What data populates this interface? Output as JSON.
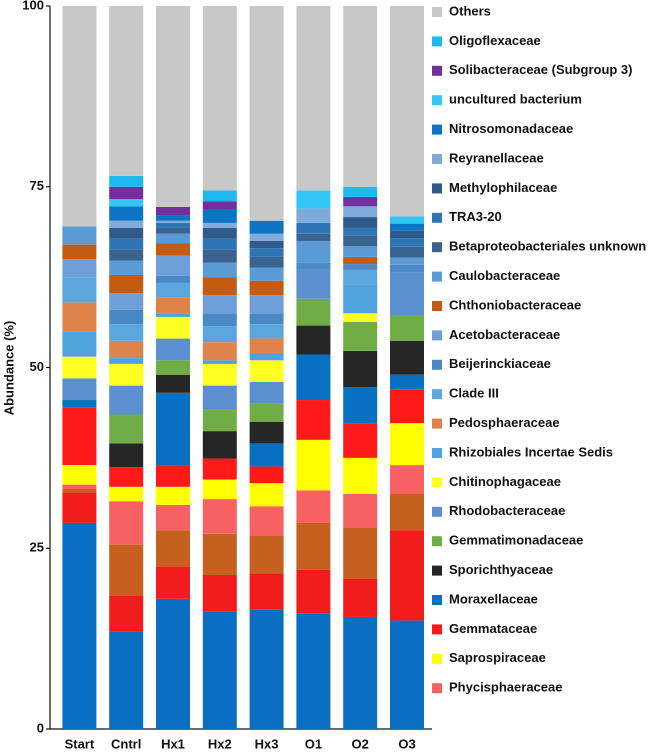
{
  "chart_data": {
    "type": "stacked_bar",
    "y_label": "Abundance (%)",
    "categories": [
      "Start",
      "Cntrl",
      "Hx1",
      "Hx2",
      "Hx3",
      "O1",
      "O2",
      "O3"
    ],
    "ylim": [
      0,
      100
    ],
    "yticks": [
      0,
      25,
      50,
      75,
      100
    ],
    "grid": false,
    "legend": "right",
    "series": [
      {
        "color": "#0a6fc2",
        "values": [
          28.5,
          13.5,
          18,
          16.3,
          16.5,
          16,
          15.5,
          15
        ]
      },
      {
        "color": "#f21c1c",
        "values": [
          4.2,
          5,
          4.5,
          5,
          5,
          6,
          5.3,
          12.5
        ]
      },
      {
        "color": "#c5601e",
        "values": [
          0.5,
          7,
          5,
          5.7,
          5.3,
          6.5,
          7,
          5
        ]
      },
      {
        "name": "Phycisphaeraceae",
        "color": "#f86161",
        "values": [
          0.6,
          6,
          3.5,
          4.8,
          4,
          4.5,
          4.7,
          4
        ]
      },
      {
        "name": "Saprospiraceae",
        "color": "#ffff00",
        "values": [
          2.7,
          2,
          2.5,
          2.7,
          3.2,
          7,
          5,
          5.8
        ]
      },
      {
        "name": "Gemmataceae",
        "color": "#ff1a1a",
        "values": [
          8,
          2.7,
          3,
          2.9,
          2.3,
          5.5,
          4.8,
          4.7
        ]
      },
      {
        "name": "Moraxellaceae",
        "color": "#0870c0",
        "values": [
          1,
          0,
          10,
          0,
          3.2,
          6.3,
          5,
          2
        ]
      },
      {
        "name": "Sporichthyaceae",
        "color": "#262626",
        "values": [
          0,
          3.3,
          2.5,
          3.8,
          3,
          4,
          5,
          4.7
        ]
      },
      {
        "name": "Gemmatimonadaceae",
        "color": "#70ad47",
        "values": [
          0,
          4,
          2,
          3,
          2.5,
          3.7,
          4,
          3.5
        ]
      },
      {
        "name": "Rhodobacteraceae",
        "color": "#5b8fd0",
        "values": [
          3,
          4,
          3,
          3.3,
          3,
          4,
          0,
          6
        ]
      },
      {
        "name": "Chitinophagaceae",
        "color": "#ffff22",
        "values": [
          3,
          3,
          3,
          3,
          3,
          0,
          1.2,
          0
        ]
      },
      {
        "name": "Rhizobiales Incertae Sedis",
        "color": "#4ea3dc",
        "values": [
          3.5,
          0.8,
          0.5,
          0.5,
          1,
          0,
          4,
          0
        ]
      },
      {
        "name": "Pedosphaeraceae",
        "color": "#e0834a",
        "values": [
          4,
          2.4,
          2.2,
          2.5,
          2,
          0,
          0,
          0
        ]
      },
      {
        "name": "Clade III",
        "color": "#5ba6dc",
        "values": [
          3.5,
          2.3,
          2,
          2.2,
          2,
          0,
          2,
          0
        ]
      },
      {
        "name": "Beijerinckiaceae",
        "color": "#4a88c6",
        "values": [
          0,
          2,
          1,
          1.8,
          1.5,
          1,
          0.8,
          1
        ]
      },
      {
        "name": "Acetobacteraceae",
        "color": "#6f9fd8",
        "values": [
          2.5,
          2.3,
          2.8,
          2.5,
          2.5,
          0,
          0,
          0
        ]
      },
      {
        "name": "Chthoniobacteraceae",
        "color": "#c55a11",
        "values": [
          2,
          2.5,
          1.7,
          2.5,
          2,
          0,
          1,
          0
        ]
      },
      {
        "name": "Caulobacteraceae",
        "color": "#5b9bd5",
        "values": [
          2.5,
          2,
          1.3,
          2,
          1.8,
          3,
          1.5,
          1
        ]
      },
      {
        "name": "Betaproteobacteriales unknown",
        "color": "#3b6390",
        "values": [
          0,
          1.5,
          0.8,
          1.8,
          1.5,
          1,
          1.5,
          1.5
        ]
      },
      {
        "name": "TRA3-20",
        "color": "#2e75b6",
        "values": [
          0,
          1.5,
          0.7,
          1.5,
          1.2,
          1.5,
          1,
          1.2
        ]
      },
      {
        "name": "Methylophilaceae",
        "color": "#2f5a8a",
        "values": [
          0,
          1.5,
          0,
          1.5,
          1,
          0,
          1.5,
          1
        ]
      },
      {
        "name": "Reyranellaceae",
        "color": "#7eaadc",
        "values": [
          0,
          1,
          0.3,
          0.7,
          1,
          2,
          1.5,
          0
        ]
      },
      {
        "name": "Nitrosomonadaceae",
        "color": "#0b74c4",
        "values": [
          0,
          2,
          0.7,
          1.8,
          1.8,
          0,
          0,
          1
        ]
      },
      {
        "name": "uncultured bacterium",
        "color": "#33c6f5",
        "values": [
          0,
          1,
          0,
          0,
          0,
          2.5,
          0,
          1
        ]
      },
      {
        "name": "Solibacteraceae (Subgroup 3)",
        "color": "#7030a0",
        "values": [
          0,
          1.7,
          1.2,
          1.2,
          0,
          0,
          1.3,
          0
        ]
      },
      {
        "name": "Oligoflexaceae",
        "color": "#1fb9ef",
        "values": [
          0,
          1.5,
          0,
          1.5,
          0,
          0,
          1.4,
          0
        ]
      },
      {
        "name": "Others",
        "color": "#c8c8c8",
        "values": [
          30.5,
          23.5,
          27.8,
          25.5,
          29.7,
          25.5,
          25,
          29.1
        ]
      }
    ]
  }
}
